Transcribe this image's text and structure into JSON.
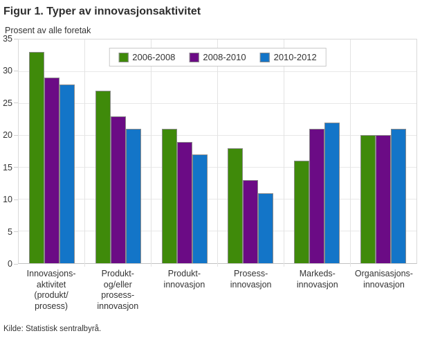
{
  "title": "Figur 1. Typer av innovasjonsaktivitet",
  "source": "Kilde: Statistisk sentralbyrå.",
  "chart_data": {
    "type": "bar",
    "title": "Figur 1. Typer av innovasjonsaktivitet",
    "ylabel": "Prosent av alle foretak",
    "xlabel": "",
    "ylim": [
      0,
      35
    ],
    "yticks": [
      0,
      5,
      10,
      15,
      20,
      25,
      30,
      35
    ],
    "grid": true,
    "legend_position": "top-center",
    "categories": [
      "Innovasjons-\naktivitet\n(produkt/\nprosess)",
      "Produkt-\nog/eller\nprosess-\ninnovasjon",
      "Produkt-\ninnovasjon",
      "Prosess-\ninnovasjon",
      "Markeds-\ninnovasjon",
      "Organisasjons-\ninnovasjon"
    ],
    "series": [
      {
        "name": "2006-2008",
        "color": "#3F8A0A",
        "values": [
          33,
          27,
          21,
          18,
          16,
          20
        ]
      },
      {
        "name": "2008-2010",
        "color": "#6B0B85",
        "values": [
          29,
          23,
          19,
          13,
          21,
          20
        ]
      },
      {
        "name": "2010-2012",
        "color": "#1375C8",
        "values": [
          28,
          21,
          17,
          11,
          22,
          21
        ]
      }
    ]
  }
}
